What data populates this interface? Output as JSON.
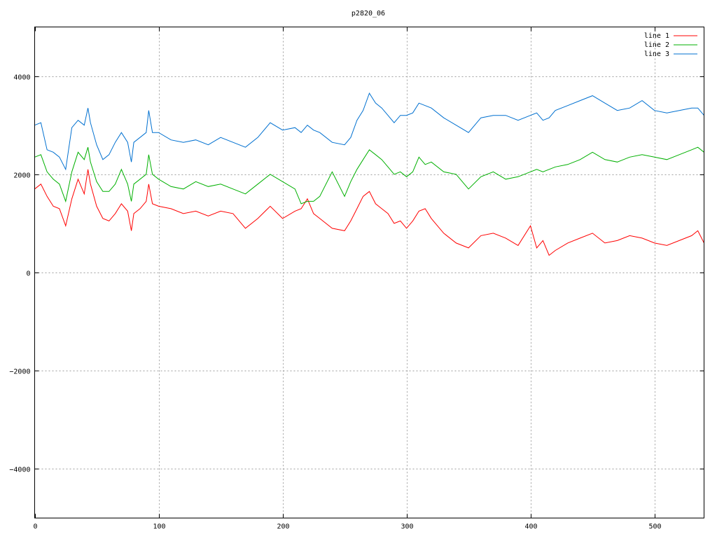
{
  "chart_data": {
    "type": "line",
    "title": "p2820_06",
    "xlabel": "",
    "ylabel": "",
    "xlim": [
      0,
      540
    ],
    "ylim": [
      -5000,
      5000
    ],
    "x_ticks": [
      0,
      100,
      200,
      300,
      400,
      500
    ],
    "y_ticks": [
      -4000,
      -2000,
      0,
      2000,
      4000
    ],
    "grid": true,
    "legend_position": "top-right",
    "series": [
      {
        "name": "line 1",
        "color": "#ff0000",
        "x": [
          0,
          5,
          10,
          15,
          20,
          25,
          30,
          35,
          40,
          43,
          45,
          50,
          55,
          60,
          65,
          70,
          75,
          78,
          80,
          85,
          90,
          92,
          95,
          100,
          110,
          120,
          130,
          140,
          150,
          160,
          170,
          180,
          190,
          200,
          210,
          215,
          220,
          225,
          230,
          240,
          250,
          255,
          260,
          265,
          270,
          275,
          280,
          285,
          290,
          295,
          300,
          305,
          310,
          315,
          320,
          330,
          340,
          350,
          360,
          370,
          380,
          390,
          400,
          405,
          410,
          415,
          420,
          430,
          440,
          450,
          460,
          470,
          480,
          490,
          500,
          510,
          520,
          530,
          535,
          540
        ],
        "y": [
          1700,
          1800,
          1550,
          1350,
          1300,
          950,
          1500,
          1900,
          1600,
          2100,
          1800,
          1350,
          1100,
          1050,
          1200,
          1400,
          1250,
          850,
          1200,
          1300,
          1450,
          1800,
          1400,
          1350,
          1300,
          1200,
          1250,
          1150,
          1250,
          1200,
          900,
          1100,
          1350,
          1100,
          1250,
          1300,
          1500,
          1200,
          1100,
          900,
          850,
          1050,
          1300,
          1550,
          1650,
          1400,
          1300,
          1200,
          1000,
          1050,
          900,
          1050,
          1250,
          1300,
          1100,
          800,
          600,
          500,
          750,
          800,
          700,
          550,
          950,
          500,
          650,
          350,
          450,
          600,
          700,
          800,
          600,
          650,
          750,
          700,
          600,
          550,
          650,
          750,
          850,
          600
        ]
      },
      {
        "name": "line 2",
        "color": "#00b000",
        "x": [
          0,
          5,
          10,
          15,
          20,
          25,
          30,
          35,
          40,
          43,
          45,
          50,
          55,
          60,
          65,
          70,
          75,
          78,
          80,
          85,
          90,
          92,
          95,
          100,
          110,
          120,
          130,
          140,
          150,
          160,
          170,
          180,
          190,
          200,
          210,
          215,
          220,
          225,
          230,
          240,
          250,
          255,
          260,
          265,
          270,
          275,
          280,
          285,
          290,
          295,
          300,
          305,
          310,
          315,
          320,
          330,
          340,
          350,
          360,
          370,
          380,
          390,
          400,
          405,
          410,
          415,
          420,
          430,
          440,
          450,
          460,
          470,
          480,
          490,
          500,
          510,
          520,
          530,
          535,
          540
        ],
        "y": [
          2350,
          2400,
          2050,
          1900,
          1800,
          1450,
          2050,
          2450,
          2300,
          2550,
          2250,
          1850,
          1650,
          1650,
          1800,
          2100,
          1800,
          1450,
          1800,
          1900,
          2000,
          2400,
          2000,
          1900,
          1750,
          1700,
          1850,
          1750,
          1800,
          1700,
          1600,
          1800,
          2000,
          1850,
          1700,
          1400,
          1450,
          1450,
          1550,
          2050,
          1550,
          1850,
          2100,
          2300,
          2500,
          2400,
          2300,
          2150,
          2000,
          2050,
          1950,
          2050,
          2350,
          2200,
          2250,
          2050,
          2000,
          1700,
          1950,
          2050,
          1900,
          1950,
          2050,
          2100,
          2050,
          2100,
          2150,
          2200,
          2300,
          2450,
          2300,
          2250,
          2350,
          2400,
          2350,
          2300,
          2400,
          2500,
          2550,
          2450
        ]
      },
      {
        "name": "line 3",
        "color": "#0070d0",
        "x": [
          0,
          5,
          10,
          15,
          20,
          25,
          30,
          35,
          40,
          43,
          45,
          50,
          55,
          60,
          65,
          70,
          75,
          78,
          80,
          85,
          90,
          92,
          95,
          100,
          110,
          120,
          130,
          140,
          150,
          160,
          170,
          180,
          190,
          200,
          210,
          215,
          220,
          225,
          230,
          240,
          250,
          255,
          260,
          265,
          270,
          275,
          280,
          285,
          290,
          295,
          300,
          305,
          310,
          315,
          320,
          330,
          340,
          350,
          360,
          370,
          380,
          390,
          400,
          405,
          410,
          415,
          420,
          430,
          440,
          450,
          460,
          470,
          480,
          490,
          500,
          510,
          520,
          530,
          535,
          540
        ],
        "y": [
          3000,
          3050,
          2500,
          2450,
          2350,
          2100,
          2950,
          3100,
          3000,
          3350,
          3050,
          2600,
          2300,
          2400,
          2650,
          2850,
          2650,
          2250,
          2650,
          2750,
          2850,
          3300,
          2850,
          2850,
          2700,
          2650,
          2700,
          2600,
          2750,
          2650,
          2550,
          2750,
          3050,
          2900,
          2950,
          2850,
          3000,
          2900,
          2850,
          2650,
          2600,
          2750,
          3100,
          3300,
          3650,
          3450,
          3350,
          3200,
          3050,
          3200,
          3200,
          3250,
          3450,
          3400,
          3350,
          3150,
          3000,
          2850,
          3150,
          3200,
          3200,
          3100,
          3200,
          3250,
          3100,
          3150,
          3300,
          3400,
          3500,
          3600,
          3450,
          3300,
          3350,
          3500,
          3300,
          3250,
          3300,
          3350,
          3350,
          3200
        ]
      }
    ]
  }
}
